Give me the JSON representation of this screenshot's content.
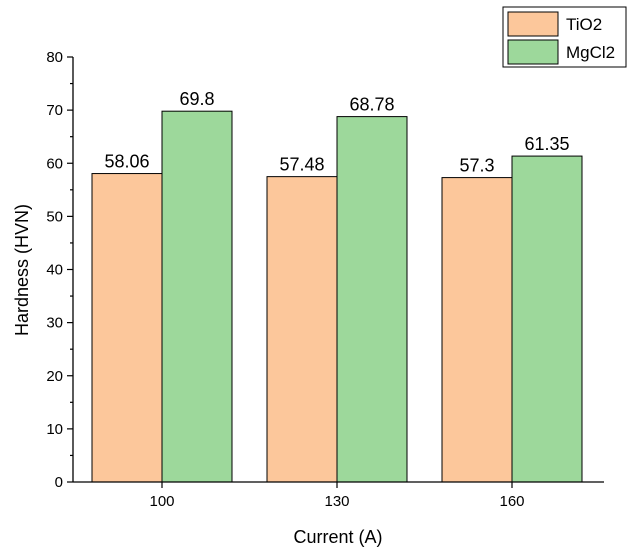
{
  "chart_data": {
    "type": "bar",
    "categories": [
      "100",
      "130",
      "160"
    ],
    "series": [
      {
        "name": "TiO2",
        "values": [
          58.06,
          57.48,
          57.3
        ],
        "labels": [
          "58.06",
          "57.48",
          "57.3"
        ],
        "color": "#fcc79b"
      },
      {
        "name": "MgCl2",
        "values": [
          69.8,
          68.78,
          61.35
        ],
        "labels": [
          "69.8",
          "68.78",
          "61.35"
        ],
        "color": "#9dd89b"
      }
    ],
    "xlabel": "Current (A)",
    "ylabel": "Hardness (HVN)",
    "ylim": [
      0,
      80
    ],
    "yticks": [
      "0",
      "10",
      "20",
      "30",
      "40",
      "50",
      "60",
      "70",
      "80"
    ],
    "grid": false,
    "legend_position": "top-right"
  }
}
